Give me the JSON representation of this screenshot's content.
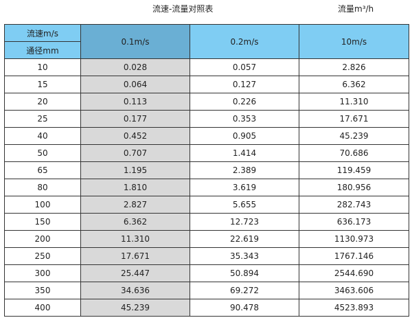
{
  "title": "流速-流量对照表",
  "unit": "流量m³/h",
  "header": {
    "speed_label": "流速m/s",
    "diameter_label": "通径mm",
    "columns": [
      "0.1m/s",
      "0.2m/s",
      "10m/s"
    ]
  },
  "colors": {
    "header": "#7fcdf3",
    "header_highlight": "#6aafd4",
    "column_highlight": "#d9d9d9"
  },
  "rows": [
    [
      "10",
      "0.028",
      "0.057",
      "2.826"
    ],
    [
      "15",
      "0.064",
      "0.127",
      "6.362"
    ],
    [
      "20",
      "0.113",
      "0.226",
      "11.310"
    ],
    [
      "25",
      "0.177",
      "0.353",
      "17.671"
    ],
    [
      "40",
      "0.452",
      "0.905",
      "45.239"
    ],
    [
      "50",
      "0.707",
      "1.414",
      "70.686"
    ],
    [
      "65",
      "1.195",
      "2.389",
      "119.459"
    ],
    [
      "80",
      "1.810",
      "3.619",
      "180.956"
    ],
    [
      "100",
      "2.827",
      "5.655",
      "282.743"
    ],
    [
      "150",
      "6.362",
      "12.723",
      "636.173"
    ],
    [
      "200",
      "11.310",
      "22.619",
      "1130.973"
    ],
    [
      "250",
      "17.671",
      "35.343",
      "1767.146"
    ],
    [
      "300",
      "25.447",
      "50.894",
      "2544.690"
    ],
    [
      "350",
      "34.636",
      "69.272",
      "3463.606"
    ],
    [
      "400",
      "45.239",
      "90.478",
      "4523.893"
    ]
  ]
}
